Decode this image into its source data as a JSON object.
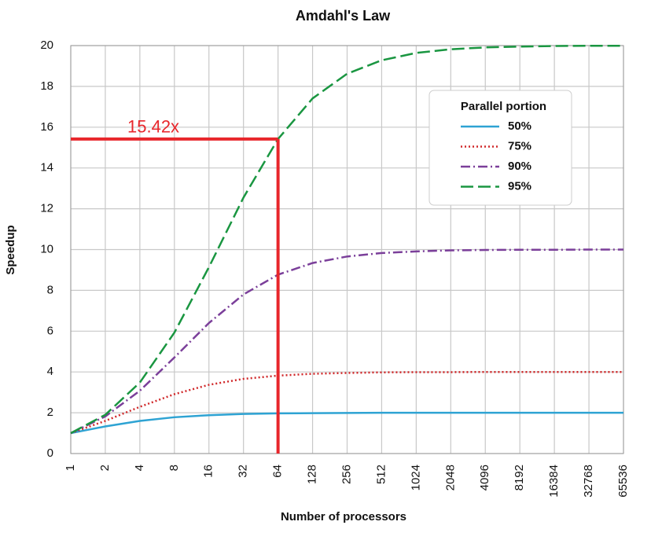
{
  "chart_data": {
    "type": "line",
    "title": "Amdahl's Law",
    "x_label": "Number of processors",
    "y_label": "Speedup",
    "x": [
      1,
      2,
      4,
      8,
      16,
      32,
      64,
      128,
      256,
      512,
      1024,
      2048,
      4096,
      8192,
      16384,
      32768,
      65536
    ],
    "x_scale": "log2",
    "xlim": [
      1,
      65536
    ],
    "xticks": [
      1,
      2,
      4,
      8,
      16,
      32,
      64,
      128,
      256,
      512,
      1024,
      2048,
      4096,
      8192,
      16384,
      32768,
      65536
    ],
    "ylim": [
      0,
      20
    ],
    "yticks": [
      0,
      2,
      4,
      6,
      8,
      10,
      12,
      14,
      16,
      18,
      20
    ],
    "grid": true,
    "legend_title": "Parallel portion",
    "legend_position": "upper right",
    "series": [
      {
        "name": "50%",
        "color": "#2ea3d3",
        "dash": "solid",
        "values": [
          1,
          1.33,
          1.6,
          1.78,
          1.88,
          1.94,
          1.97,
          1.98,
          1.99,
          2.0,
          2.0,
          2.0,
          2.0,
          2.0,
          2.0,
          2.0,
          2.0
        ]
      },
      {
        "name": "75%",
        "color": "#d0282a",
        "dash": "dotted",
        "values": [
          1,
          1.6,
          2.29,
          2.91,
          3.37,
          3.66,
          3.82,
          3.91,
          3.95,
          3.98,
          3.99,
          3.99,
          4.0,
          4.0,
          4.0,
          4.0,
          4.0
        ]
      },
      {
        "name": "90%",
        "color": "#7b3f9a",
        "dash": "dashdot",
        "values": [
          1,
          1.82,
          3.08,
          4.71,
          6.4,
          7.8,
          8.77,
          9.34,
          9.66,
          9.83,
          9.91,
          9.96,
          9.98,
          9.99,
          9.99,
          10.0,
          10.0
        ]
      },
      {
        "name": "95%",
        "color": "#1a9641",
        "dash": "dashed",
        "values": [
          1,
          1.9,
          3.48,
          5.93,
          9.14,
          12.55,
          15.42,
          17.41,
          18.62,
          19.28,
          19.64,
          19.82,
          19.91,
          19.95,
          19.98,
          19.99,
          19.99
        ]
      }
    ],
    "annotation": {
      "text": "15.42x",
      "x": 64,
      "y": 15.42,
      "color": "#e8262b"
    }
  }
}
